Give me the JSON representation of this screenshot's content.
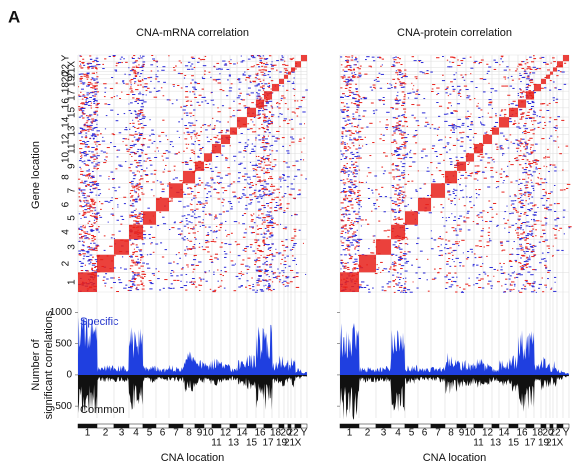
{
  "panel_label": "A",
  "gene_axis_label": "Gene location",
  "count_axis_label": [
    "Number of",
    "significant correlations"
  ],
  "specific_label": "Specific",
  "common_label": "Common",
  "chromosomes": [
    "1",
    "2",
    "3",
    "4",
    "5",
    "6",
    "7",
    "8",
    "9",
    "10",
    "11",
    "12",
    "13",
    "14",
    "15",
    "16",
    "17",
    "18",
    "19",
    "20",
    "21",
    "22",
    "X",
    "Y"
  ],
  "panels": [
    {
      "title": "CNA-mRNA correlation",
      "x_label": "CNA location"
    },
    {
      "title": "CNA-protein correlation",
      "x_label": "CNA location"
    }
  ],
  "count_axis": {
    "ylim": [
      -690,
      1200
    ],
    "yticks": [
      1000,
      500,
      0,
      {
        "value": -500,
        "label": "500"
      }
    ]
  }
}
